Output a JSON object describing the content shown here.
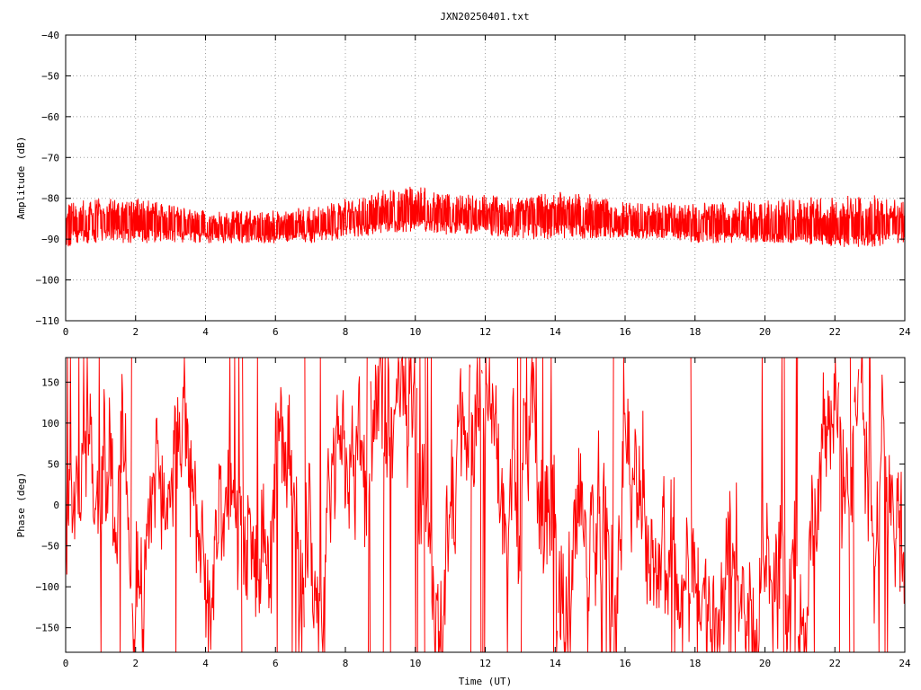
{
  "figure": {
    "title": "JXN20250401.txt"
  },
  "colors": {
    "trace": "#ff0000",
    "frame": "#000000",
    "grid": "#a0a0a0",
    "background": "#ffffff"
  },
  "chart_data": [
    {
      "type": "line",
      "title": "JXN20250401.txt",
      "xlabel": "",
      "ylabel": "Amplitude (dB)",
      "xlim": [
        0,
        24
      ],
      "ylim": [
        -110,
        -40
      ],
      "x_ticks": [
        "0",
        "2",
        "4",
        "6",
        "8",
        "10",
        "12",
        "14",
        "16",
        "18",
        "20",
        "22",
        "24"
      ],
      "y_ticks": [
        "-40",
        "-50",
        "-60",
        "-70",
        "-80",
        "-90",
        "-100",
        "-110"
      ],
      "grid": true,
      "legend": "none",
      "trace_style": "dense noisy envelope",
      "series": [
        {
          "x": [
            0,
            1,
            2,
            3,
            4,
            5,
            6,
            7,
            8,
            9,
            10,
            11,
            12,
            13,
            14,
            15,
            16,
            17,
            18,
            19,
            20,
            21,
            22,
            23,
            24
          ],
          "center": [
            -86.5,
            -86,
            -86,
            -86.5,
            -87.5,
            -88,
            -88,
            -87,
            -85.5,
            -84.5,
            -84,
            -84.5,
            -85,
            -85,
            -84.5,
            -85,
            -86.5,
            -86.5,
            -87,
            -87.5,
            -87.5,
            -87.5,
            -87.5,
            -87.5,
            -87
          ],
          "upper": [
            -81,
            -80,
            -80,
            -81,
            -83,
            -83,
            -83,
            -82,
            -80,
            -78,
            -77,
            -79,
            -79,
            -80,
            -78,
            -79,
            -81,
            -81,
            -81,
            -81,
            -80,
            -80,
            -79,
            -79,
            -80
          ],
          "lower": [
            -92,
            -91,
            -91,
            -91,
            -91,
            -91,
            -91,
            -91,
            -90,
            -89,
            -88,
            -89,
            -89,
            -90,
            -90,
            -90,
            -90,
            -90,
            -91,
            -91,
            -91,
            -91,
            -92,
            -92,
            -91
          ]
        }
      ]
    },
    {
      "type": "line",
      "title": "",
      "xlabel": "Time (UT)",
      "ylabel": "Phase (deg)",
      "xlim": [
        0,
        24
      ],
      "ylim": [
        -180,
        180
      ],
      "x_ticks": [
        "0",
        "2",
        "4",
        "6",
        "8",
        "10",
        "12",
        "14",
        "16",
        "18",
        "20",
        "22",
        "24"
      ],
      "y_ticks": [
        "150",
        "100",
        "50",
        "0",
        "-50",
        "-100",
        "-150"
      ],
      "grid": false,
      "legend": "none",
      "trace_style": "wrapped phase, rapid oscillation",
      "series": [
        {
          "x": [
            0,
            1,
            2,
            3,
            4,
            5,
            6,
            7,
            8,
            9,
            10,
            11,
            12,
            13,
            14,
            15,
            16,
            17,
            18,
            19,
            20,
            21,
            22,
            23,
            24
          ],
          "upper": [
            150,
            120,
            90,
            130,
            40,
            20,
            120,
            60,
            110,
            150,
            170,
            140,
            150,
            150,
            160,
            120,
            80,
            60,
            80,
            170,
            170,
            160,
            170,
            180,
            140
          ],
          "lower": [
            -150,
            -150,
            -170,
            -150,
            -150,
            -140,
            -160,
            -150,
            -170,
            -170,
            -180,
            -170,
            -180,
            -170,
            -180,
            -160,
            -150,
            -140,
            -140,
            -150,
            -160,
            -150,
            -160,
            -170,
            -150
          ]
        }
      ]
    }
  ]
}
